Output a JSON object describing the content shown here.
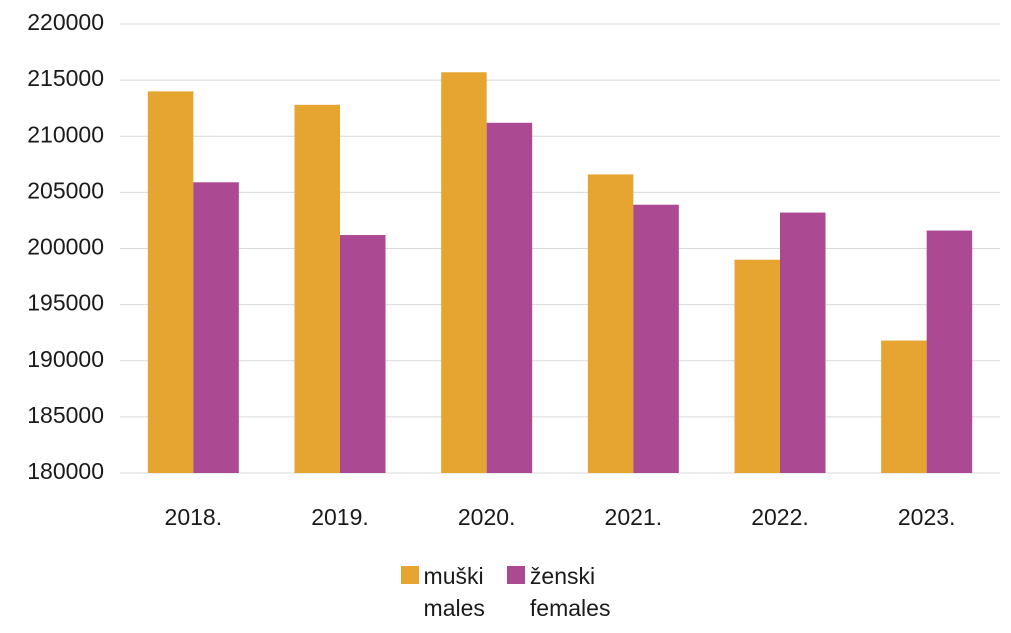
{
  "chart_data": {
    "type": "bar",
    "categories": [
      "2018.",
      "2019.",
      "2020.",
      "2021.",
      "2022.",
      "2023."
    ],
    "series": [
      {
        "name": "muški\nmales",
        "color": "#e5a530",
        "values": [
          214000,
          212800,
          215700,
          206600,
          199000,
          191800
        ]
      },
      {
        "name": "ženski\nfemales",
        "color": "#ab4a93",
        "values": [
          205900,
          201200,
          211200,
          203900,
          203200,
          201600
        ]
      }
    ],
    "ylim": [
      180000,
      220000
    ],
    "yticks": [
      180000,
      185000,
      190000,
      195000,
      200000,
      205000,
      210000,
      215000,
      220000
    ],
    "grid": true,
    "legend": "bottom"
  }
}
